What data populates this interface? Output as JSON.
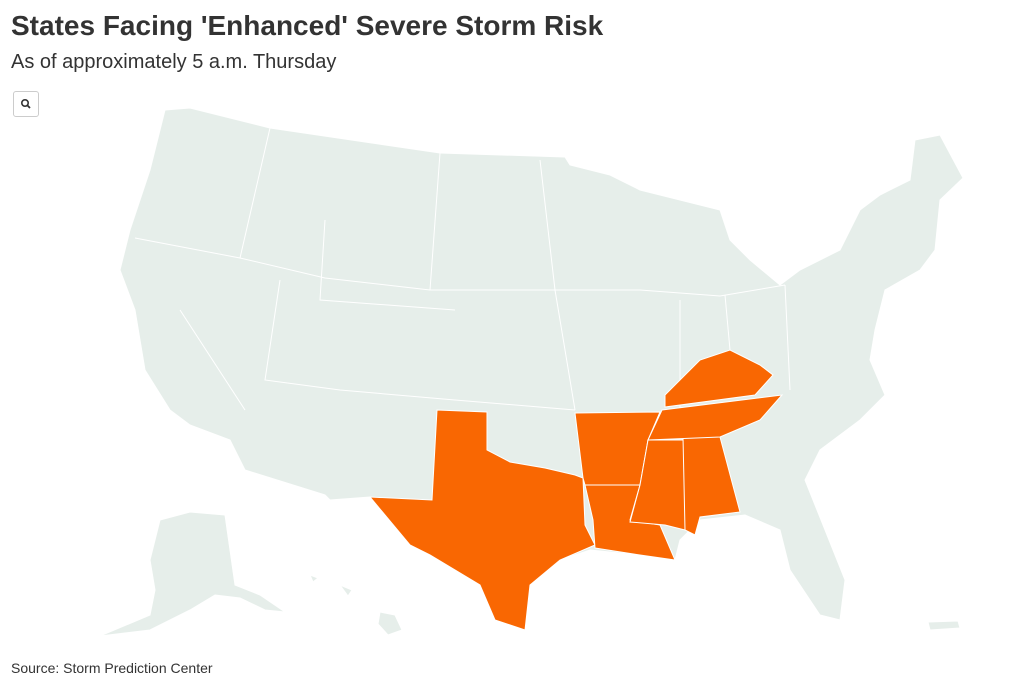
{
  "header": {
    "title": "States Facing 'Enhanced' Severe Storm Risk",
    "subtitle": "As of approximately 5 a.m. Thursday"
  },
  "map": {
    "base_color": "#e6eeea",
    "highlight_color": "#f96702"
  },
  "footer": {
    "source": "Source: Storm Prediction Center"
  }
}
